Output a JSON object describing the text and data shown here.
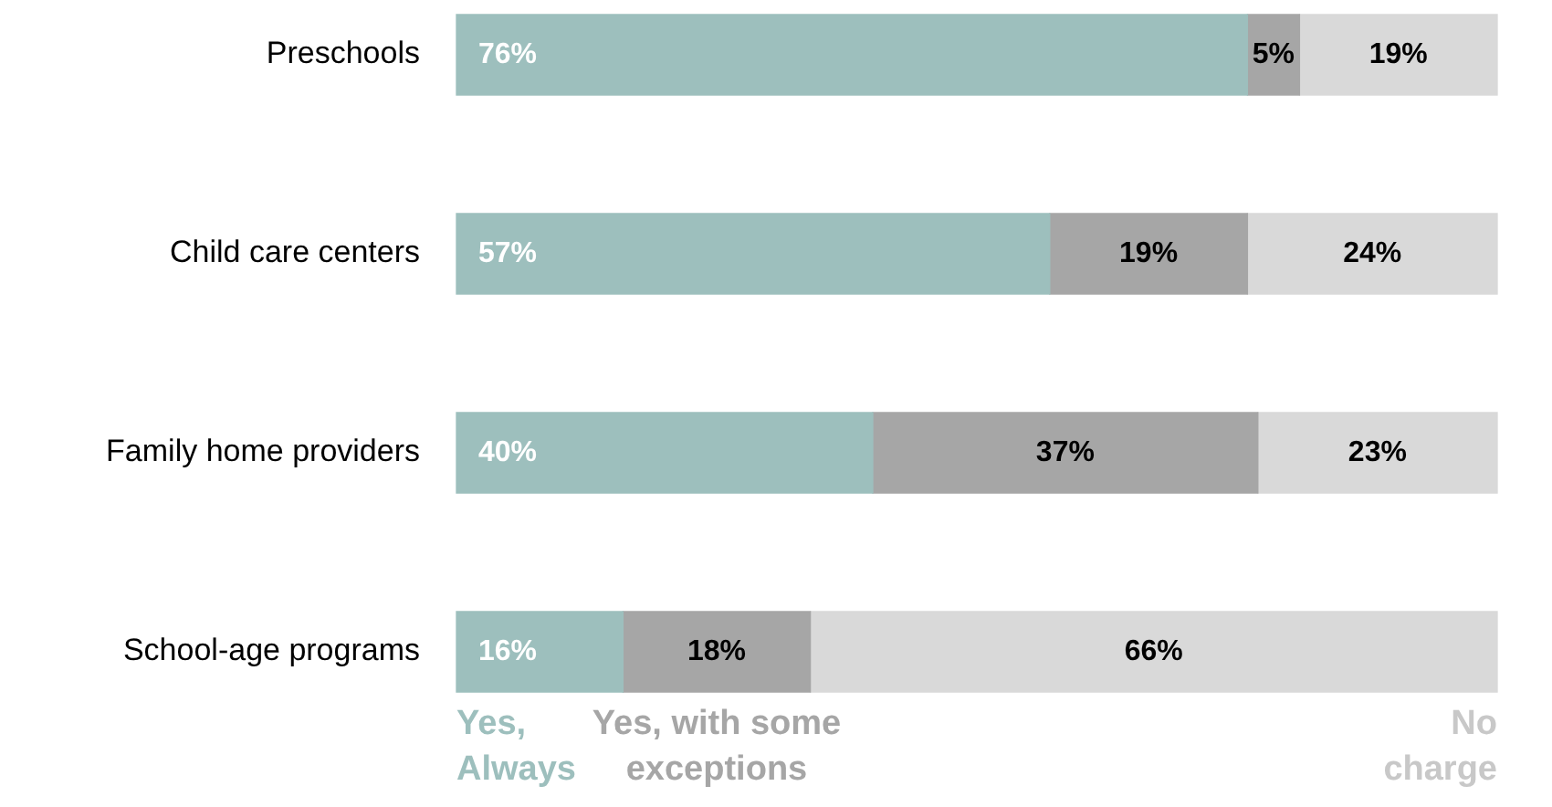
{
  "chart_data": {
    "type": "bar",
    "orientation": "horizontal",
    "stacked": true,
    "categories": [
      "Preschools",
      "Child care centers",
      "Family home providers",
      "School-age programs"
    ],
    "series": [
      {
        "name": "Yes, Always",
        "color": "#9dbfbd",
        "values": [
          76,
          57,
          40,
          16
        ],
        "value_labels": [
          "76%",
          "57%",
          "40%",
          "16%"
        ]
      },
      {
        "name": "Yes, with some exceptions",
        "color": "#a6a6a6",
        "values": [
          5,
          19,
          37,
          18
        ],
        "value_labels": [
          "5%",
          "19%",
          "37%",
          "18%"
        ]
      },
      {
        "name": "No charge",
        "color": "#d9d9d9",
        "values": [
          19,
          24,
          23,
          66
        ],
        "value_labels": [
          "19%",
          "24%",
          "23%",
          "66%"
        ]
      }
    ],
    "tick_labels": "y"
  }
}
